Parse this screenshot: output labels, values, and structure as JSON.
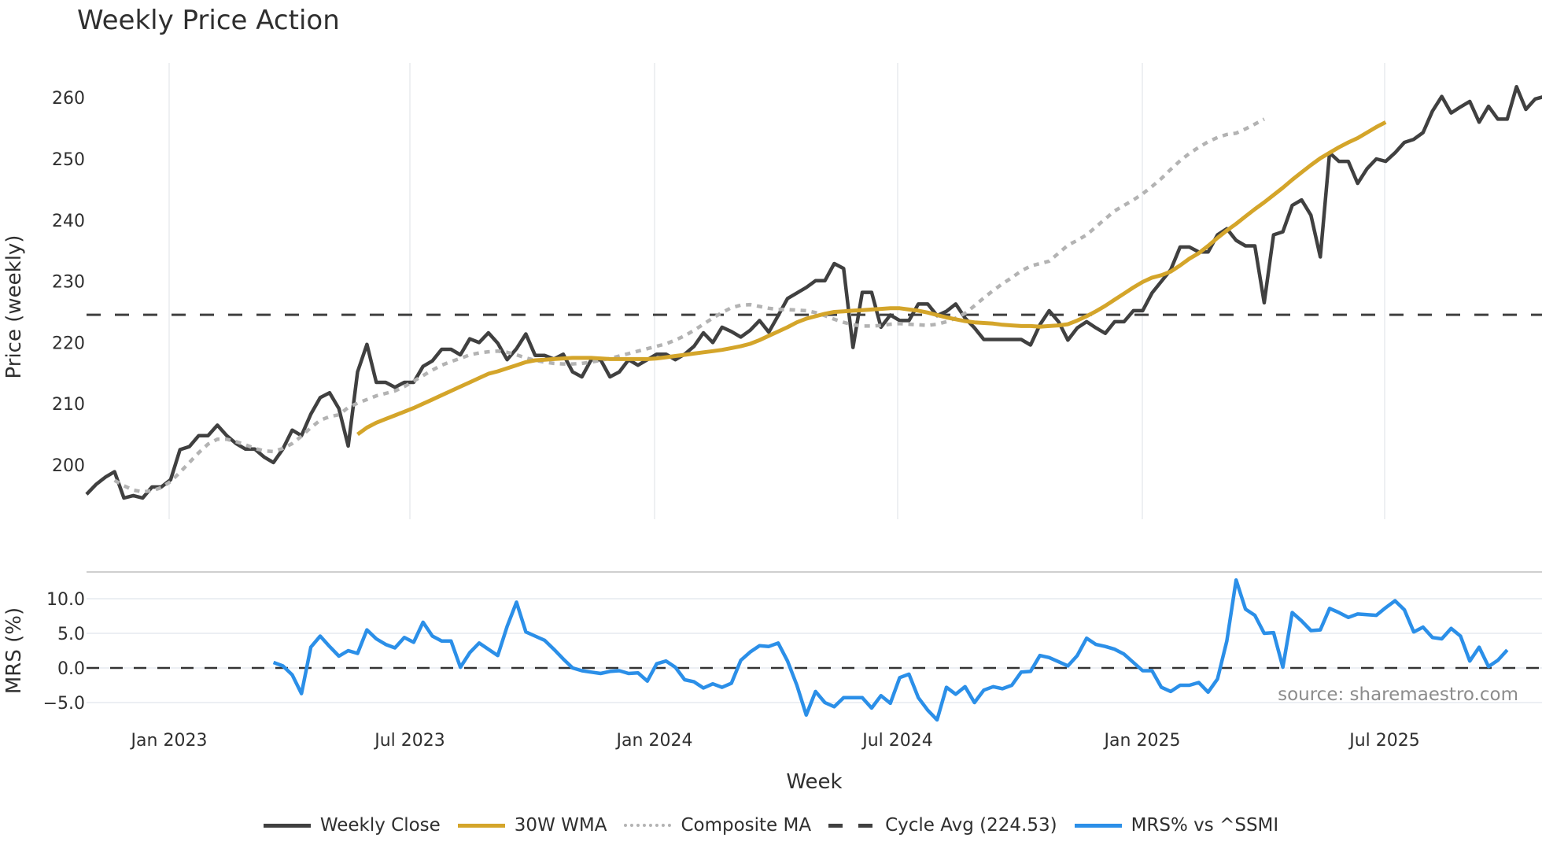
{
  "title": "Weekly Price Action",
  "source_note": "source: sharemaestro.com",
  "legend": [
    {
      "label": "Weekly Close",
      "color": "#404040",
      "style": "solid"
    },
    {
      "label": "30W WMA",
      "color": "#d4a52a",
      "style": "solid"
    },
    {
      "label": "Composite MA",
      "color": "#b3b3b3",
      "style": "dotted"
    },
    {
      "label": "Cycle Avg (224.53)",
      "color": "#404040",
      "style": "dashed"
    },
    {
      "label": "MRS% vs ^SSMI",
      "color": "#2b8fe8",
      "style": "solid"
    }
  ],
  "chart_data": [
    {
      "type": "line",
      "title": "Weekly Price Action",
      "xlabel": "",
      "ylabel": "Price (weekly)",
      "ylim": [
        192,
        266
      ],
      "yticks": [
        200,
        210,
        220,
        230,
        240,
        250,
        260
      ],
      "xticks": [
        "Jan 2023",
        "Jul 2023",
        "Jan 2024",
        "Jul 2024",
        "Jan 2025",
        "Jul 2025"
      ],
      "hlines": [
        {
          "label": "Cycle Avg",
          "value": 224.53
        }
      ],
      "series": [
        {
          "name": "Weekly Close",
          "start_week": 0,
          "values": [
            195.2,
            196.8,
            198.0,
            198.9,
            194.6,
            195.0,
            194.6,
            196.4,
            196.4,
            197.6,
            202.5,
            203.0,
            204.8,
            204.8,
            206.5,
            204.8,
            203.5,
            202.6,
            202.6,
            201.3,
            200.4,
            202.6,
            205.7,
            204.8,
            208.3,
            211.0,
            211.8,
            209.2,
            203.1,
            215.2,
            219.7,
            213.5,
            213.5,
            212.7,
            213.5,
            213.5,
            216.1,
            217.0,
            218.9,
            218.9,
            218.0,
            220.6,
            220.0,
            221.6,
            219.9,
            217.2,
            219.0,
            221.4,
            217.9,
            217.9,
            217.3,
            218.1,
            215.2,
            214.4,
            217.2,
            217.2,
            214.4,
            215.2,
            217.2,
            216.3,
            217.2,
            218.1,
            218.1,
            217.2,
            218.1,
            219.4,
            221.6,
            220.0,
            222.5,
            221.8,
            220.9,
            222.0,
            223.6,
            221.7,
            224.4,
            227.2,
            228.1,
            229.0,
            230.1,
            230.1,
            232.9,
            232.1,
            219.2,
            228.2,
            228.2,
            222.5,
            224.5,
            223.6,
            223.6,
            226.3,
            226.3,
            224.4,
            225.1,
            226.3,
            224.0,
            222.4,
            220.5,
            220.5,
            220.5,
            220.5,
            220.5,
            219.6,
            222.9,
            225.2,
            223.4,
            220.4,
            222.4,
            223.4,
            222.4,
            221.5,
            223.4,
            223.4,
            225.2,
            225.2,
            228.1,
            230.0,
            231.9,
            235.6,
            235.6,
            234.8,
            234.8,
            237.6,
            238.6,
            236.7,
            235.8,
            235.8,
            226.5,
            237.6,
            238.1,
            242.4,
            243.3,
            240.8,
            234.0,
            251.0,
            249.6,
            249.6,
            246.0,
            248.4,
            250.0,
            249.6,
            251.0,
            252.7,
            253.2,
            254.3,
            257.8,
            260.2,
            257.5,
            258.5,
            259.4,
            256.0,
            258.6,
            256.5,
            256.5,
            261.8,
            258.1,
            259.8,
            260.2
          ]
        },
        {
          "name": "30W WMA",
          "start_week": 29,
          "values": [
            205.0,
            206.1,
            206.9,
            207.5,
            208.1,
            208.7,
            209.3,
            210.0,
            210.7,
            211.4,
            212.1,
            212.8,
            213.5,
            214.2,
            214.9,
            215.3,
            215.8,
            216.3,
            216.8,
            217.1,
            217.2,
            217.3,
            217.4,
            217.5,
            217.5,
            217.5,
            217.4,
            217.3,
            217.3,
            217.3,
            217.3,
            217.3,
            217.4,
            217.6,
            217.8,
            218.0,
            218.2,
            218.4,
            218.6,
            218.8,
            219.1,
            219.4,
            219.8,
            220.4,
            221.1,
            221.8,
            222.5,
            223.3,
            223.9,
            224.3,
            224.7,
            225.0,
            225.1,
            225.2,
            225.3,
            225.4,
            225.5,
            225.6,
            225.6,
            225.4,
            225.2,
            224.9,
            224.5,
            224.1,
            223.8,
            223.5,
            223.3,
            223.2,
            223.1,
            222.9,
            222.8,
            222.7,
            222.7,
            222.6,
            222.7,
            222.8,
            223.0,
            223.6,
            224.3,
            225.1,
            226.0,
            227.0,
            228.0,
            229.0,
            229.9,
            230.6,
            231.0,
            231.6,
            232.6,
            233.7,
            234.6,
            235.8,
            237.1,
            238.3,
            239.4,
            240.6,
            241.8,
            242.9,
            244.1,
            245.3,
            246.6,
            247.8,
            249.0,
            250.1,
            251.0,
            251.9,
            252.7,
            253.4,
            254.3,
            255.2,
            256.0
          ]
        },
        {
          "name": "Composite MA",
          "start_week": 3,
          "values": [
            197.5,
            196.6,
            195.9,
            195.6,
            195.8,
            196.3,
            197.3,
            198.8,
            200.4,
            202.0,
            203.4,
            204.2,
            204.2,
            203.8,
            203.3,
            202.7,
            202.3,
            202.2,
            202.7,
            203.5,
            204.7,
            206.1,
            207.3,
            207.9,
            208.2,
            209.4,
            210.1,
            210.7,
            211.3,
            211.7,
            212.1,
            212.8,
            213.7,
            214.6,
            215.5,
            216.3,
            216.9,
            217.4,
            218.0,
            218.3,
            218.5,
            218.6,
            218.4,
            218.0,
            217.5,
            217.1,
            216.8,
            216.6,
            216.5,
            216.5,
            216.6,
            216.8,
            217.1,
            217.4,
            217.8,
            218.2,
            218.6,
            219.0,
            219.4,
            219.8,
            220.4,
            221.1,
            222.0,
            223.0,
            224.0,
            224.9,
            225.7,
            226.1,
            226.2,
            225.9,
            225.6,
            225.4,
            225.4,
            225.3,
            225.2,
            224.9,
            224.4,
            223.8,
            223.3,
            222.9,
            222.7,
            222.7,
            222.8,
            223.0,
            223.1,
            223.0,
            222.9,
            222.8,
            223.0,
            223.4,
            224.0,
            224.8,
            226.0,
            227.3,
            228.5,
            229.6,
            230.6,
            231.7,
            232.5,
            232.9,
            233.3,
            234.6,
            235.9,
            236.7,
            237.6,
            238.9,
            240.2,
            241.5,
            242.4,
            243.3,
            244.3,
            245.5,
            246.8,
            248.3,
            249.7,
            250.9,
            251.9,
            252.8,
            253.5,
            254.0,
            254.2,
            254.9,
            255.7,
            256.5
          ]
        }
      ]
    },
    {
      "type": "line",
      "title": "",
      "xlabel": "Week",
      "ylabel": "MRS (%)",
      "ylim": [
        -8.5,
        14
      ],
      "yticks": [
        -5.0,
        0.0,
        5.0,
        10.0
      ],
      "xticks": [
        "Jan 2023",
        "Jul 2023",
        "Jan 2024",
        "Jul 2024",
        "Jan 2025",
        "Jul 2025"
      ],
      "hlines": [
        {
          "label": "zero",
          "value": 0.0
        }
      ],
      "series": [
        {
          "name": "MRS% vs ^SSMI",
          "start_week": 20,
          "values": [
            0.8,
            0.3,
            -1.0,
            -3.7,
            3.0,
            4.6,
            3.1,
            1.7,
            2.5,
            2.1,
            5.5,
            4.2,
            3.4,
            2.9,
            4.4,
            3.7,
            6.6,
            4.6,
            3.9,
            3.9,
            0.1,
            2.2,
            3.6,
            2.7,
            1.8,
            6.0,
            9.5,
            5.2,
            4.6,
            4.0,
            2.7,
            1.3,
            0.0,
            -0.4,
            -0.6,
            -0.8,
            -0.5,
            -0.4,
            -0.8,
            -0.7,
            -1.9,
            0.6,
            1.0,
            0.1,
            -1.7,
            -2.0,
            -2.9,
            -2.3,
            -2.8,
            -2.2,
            1.1,
            2.3,
            3.2,
            3.1,
            3.6,
            1.0,
            -2.5,
            -6.8,
            -3.4,
            -5.0,
            -5.6,
            -4.3,
            -4.3,
            -4.3,
            -5.8,
            -4.0,
            -5.1,
            -1.4,
            -0.9,
            -4.3,
            -6.1,
            -7.5,
            -2.8,
            -3.8,
            -2.7,
            -5.0,
            -3.2,
            -2.7,
            -3.0,
            -2.5,
            -0.6,
            -0.5,
            1.8,
            1.5,
            0.9,
            0.3,
            1.8,
            4.3,
            3.4,
            3.1,
            2.7,
            2.0,
            0.8,
            -0.4,
            -0.4,
            -2.8,
            -3.4,
            -2.5,
            -2.5,
            -2.1,
            -3.5,
            -1.6,
            3.9,
            12.7,
            8.5,
            7.6,
            5.0,
            5.1,
            0.1,
            8.0,
            6.8,
            5.4,
            5.5,
            8.6,
            8.0,
            7.3,
            7.8,
            7.7,
            7.6,
            8.7,
            9.7,
            8.4,
            5.2,
            5.9,
            4.4,
            4.2,
            5.7,
            4.6,
            1.0,
            3.0,
            0.2,
            1.1,
            2.6
          ]
        }
      ]
    }
  ]
}
